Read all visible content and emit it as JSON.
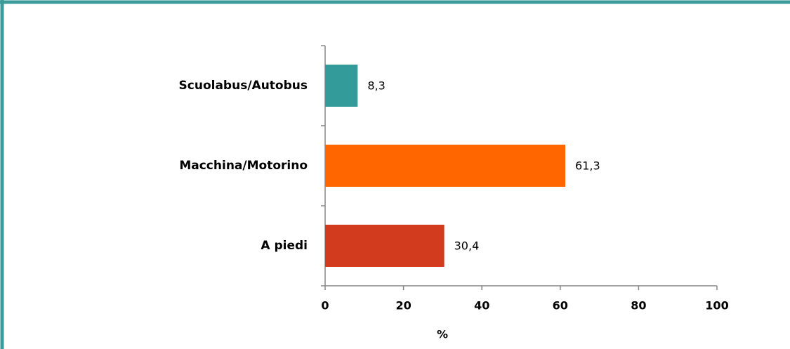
{
  "chart_data": {
    "type": "barh",
    "categories": [
      "Scuolabus/Autobus",
      "Macchina/Motorino",
      "A piedi"
    ],
    "values": [
      8.3,
      61.3,
      30.4
    ],
    "value_labels": [
      "8,3",
      "61,3",
      "30,4"
    ],
    "colors": [
      "#339b99",
      "#ff6600",
      "#d23b1e"
    ],
    "xlabel": "%",
    "xlim": [
      0,
      100
    ],
    "xticks": [
      0,
      20,
      40,
      60,
      80,
      100
    ]
  }
}
